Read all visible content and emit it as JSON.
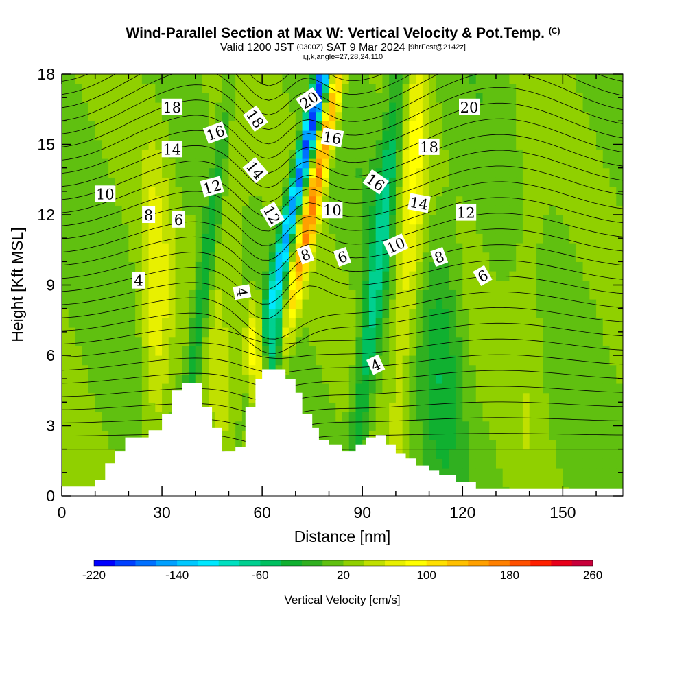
{
  "header": {
    "title": "Wind-Parallel Section at Max W: Vertical Velocity & Pot.Temp.",
    "copyright": "(C)",
    "valid_label": "Valid 1200 JST",
    "utc": "(0300Z)",
    "date": "SAT 9 Mar 2024",
    "forecast": "[9hrFcst@2142z]",
    "indices": "i,j,k,angle=27,28,24,110"
  },
  "chart_data": {
    "type": "heatmap",
    "xlabel": "Distance [nm]",
    "ylabel": "Height [Kft MSL]",
    "xlim": [
      0,
      168
    ],
    "ylim": [
      0,
      18
    ],
    "x_ticks": [
      0,
      30,
      60,
      90,
      120,
      150
    ],
    "y_ticks": [
      0,
      3,
      6,
      9,
      12,
      15,
      18
    ],
    "colorbar": {
      "label": "Vertical Velocity [cm/s]",
      "range": [
        -220,
        260
      ],
      "step": 20,
      "tick_labels": [
        "-220",
        "-140",
        "-60",
        "20",
        "100",
        "180",
        "260"
      ],
      "colors": [
        "#0000ff",
        "#0040ff",
        "#0070ff",
        "#00a0ff",
        "#00c8ff",
        "#00e8ff",
        "#00e0c0",
        "#00d090",
        "#00c060",
        "#10b030",
        "#30b020",
        "#60c010",
        "#90d000",
        "#c0e000",
        "#e8f000",
        "#ffff00",
        "#ffe000",
        "#ffc000",
        "#ffa000",
        "#ff8000",
        "#ff5000",
        "#ff2000",
        "#e8001a",
        "#c8003a",
        "#a00060",
        "#800080",
        "#600090"
      ]
    },
    "terrain_kft": [
      [
        0,
        0.4
      ],
      [
        10,
        0.7
      ],
      [
        13,
        1.4
      ],
      [
        16,
        1.9
      ],
      [
        19,
        2.5
      ],
      [
        26,
        2.8
      ],
      [
        30,
        3.5
      ],
      [
        33,
        4.5
      ],
      [
        36,
        4.8
      ],
      [
        42,
        3.8
      ],
      [
        45,
        2.9
      ],
      [
        48,
        1.9
      ],
      [
        52,
        2.1
      ],
      [
        55,
        3.8
      ],
      [
        58,
        5.0
      ],
      [
        60,
        5.4
      ],
      [
        67,
        5.0
      ],
      [
        70,
        4.4
      ],
      [
        72,
        3.5
      ],
      [
        75,
        2.9
      ],
      [
        77,
        2.4
      ],
      [
        80,
        2.2
      ],
      [
        84,
        1.9
      ],
      [
        88,
        2.2
      ],
      [
        91,
        2.5
      ],
      [
        94,
        2.6
      ],
      [
        97,
        2.2
      ],
      [
        100,
        1.8
      ],
      [
        103,
        1.6
      ],
      [
        106,
        1.3
      ],
      [
        110,
        1.1
      ],
      [
        113,
        0.9
      ],
      [
        118,
        0.6
      ],
      [
        124,
        0.3
      ],
      [
        168,
        0.3
      ]
    ],
    "contour_labels": [
      {
        "text": "18",
        "x": 33,
        "y": 16.6,
        "angle": 0
      },
      {
        "text": "16",
        "x": 46,
        "y": 15.5,
        "angle": -20
      },
      {
        "text": "14",
        "x": 33,
        "y": 14.8,
        "angle": 0
      },
      {
        "text": "12",
        "x": 45,
        "y": 13.2,
        "angle": -15
      },
      {
        "text": "10",
        "x": 13,
        "y": 12.9,
        "angle": 0
      },
      {
        "text": "8",
        "x": 26,
        "y": 12.0,
        "angle": 0
      },
      {
        "text": "6",
        "x": 35,
        "y": 11.8,
        "angle": 0
      },
      {
        "text": "4",
        "x": 23,
        "y": 9.2,
        "angle": 0
      },
      {
        "text": "18",
        "x": 58,
        "y": 16.1,
        "angle": 55
      },
      {
        "text": "14",
        "x": 58,
        "y": 13.9,
        "angle": 50
      },
      {
        "text": "12",
        "x": 63,
        "y": 12.0,
        "angle": 60
      },
      {
        "text": "4",
        "x": 54,
        "y": 8.7,
        "angle": 80
      },
      {
        "text": "20",
        "x": 74,
        "y": 16.9,
        "angle": -35
      },
      {
        "text": "16",
        "x": 81,
        "y": 15.3,
        "angle": 10
      },
      {
        "text": "10",
        "x": 81,
        "y": 12.2,
        "angle": 0
      },
      {
        "text": "8",
        "x": 73,
        "y": 10.3,
        "angle": -20
      },
      {
        "text": "6",
        "x": 84,
        "y": 10.2,
        "angle": -20
      },
      {
        "text": "16",
        "x": 94,
        "y": 13.4,
        "angle": 35
      },
      {
        "text": "14",
        "x": 107,
        "y": 12.5,
        "angle": 10
      },
      {
        "text": "10",
        "x": 100,
        "y": 10.7,
        "angle": -25
      },
      {
        "text": "4",
        "x": 94,
        "y": 5.6,
        "angle": -25
      },
      {
        "text": "20",
        "x": 122,
        "y": 16.6,
        "angle": 0
      },
      {
        "text": "18",
        "x": 110,
        "y": 14.9,
        "angle": 0
      },
      {
        "text": "12",
        "x": 121,
        "y": 12.1,
        "angle": 0
      },
      {
        "text": "8",
        "x": 113,
        "y": 10.2,
        "angle": -20
      },
      {
        "text": "6",
        "x": 126,
        "y": 9.4,
        "angle": -30
      }
    ]
  }
}
